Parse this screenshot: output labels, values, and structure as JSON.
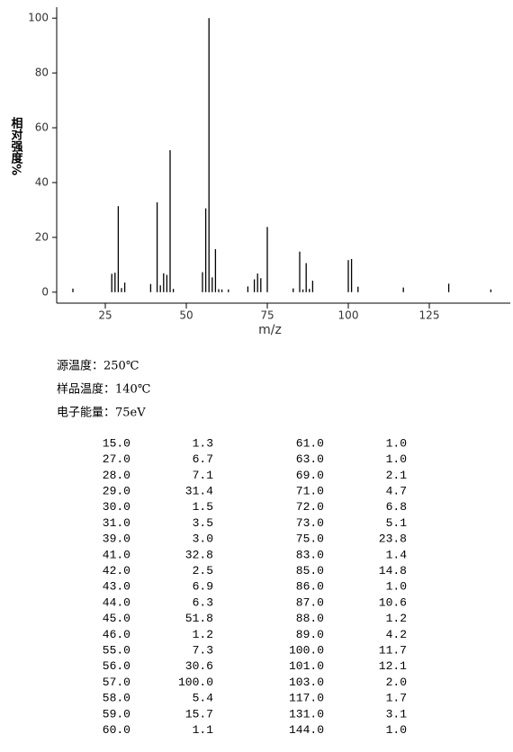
{
  "chart_data": {
    "type": "stem",
    "xlabel": "m/z",
    "ylabel": "相对强度%",
    "x": [
      15,
      27,
      28,
      29,
      30,
      31,
      39,
      41,
      42,
      43,
      44,
      45,
      46,
      55,
      56,
      57,
      58,
      59,
      60,
      61,
      63,
      69,
      71,
      72,
      73,
      75,
      83,
      85,
      86,
      87,
      88,
      89,
      100,
      101,
      103,
      117,
      131,
      144
    ],
    "x_labels": [
      "15.0",
      "27.0",
      "28.0",
      "29.0",
      "30.0",
      "31.0",
      "39.0",
      "41.0",
      "42.0",
      "43.0",
      "44.0",
      "45.0",
      "46.0",
      "55.0",
      "56.0",
      "57.0",
      "58.0",
      "59.0",
      "60.0",
      "61.0",
      "63.0",
      "69.0",
      "71.0",
      "72.0",
      "73.0",
      "75.0",
      "83.0",
      "85.0",
      "86.0",
      "87.0",
      "88.0",
      "89.0",
      "100.0",
      "101.0",
      "103.0",
      "117.0",
      "131.0",
      "144.0"
    ],
    "values": [
      1.3,
      6.7,
      7.1,
      31.4,
      1.5,
      3.5,
      3.0,
      32.8,
      2.5,
      6.9,
      6.3,
      51.8,
      1.2,
      7.3,
      30.6,
      100,
      5.4,
      15.7,
      1.1,
      1.0,
      1.0,
      2.1,
      4.7,
      6.8,
      5.1,
      23.8,
      1.4,
      14.8,
      1.0,
      10.6,
      1.2,
      4.2,
      11.7,
      12.1,
      2.0,
      1.7,
      3.1,
      1.0
    ],
    "value_labels": [
      "1.3",
      "6.7",
      "7.1",
      "31.4",
      "1.5",
      "3.5",
      "3.0",
      "32.8",
      "2.5",
      "6.9",
      "6.3",
      "51.8",
      "1.2",
      "7.3",
      "30.6",
      "100.0",
      "5.4",
      "15.7",
      "1.1",
      "1.0",
      "1.0",
      "2.1",
      "4.7",
      "6.8",
      "5.1",
      "23.8",
      "1.4",
      "14.8",
      "1.0",
      "10.6",
      "1.2",
      "4.2",
      "11.7",
      "12.1",
      "2.0",
      "1.7",
      "3.1",
      "1.0"
    ],
    "color": "#000000",
    "xlim": [
      10,
      150
    ],
    "xticks": [
      25,
      50,
      75,
      100,
      125
    ],
    "ylim": [
      -4,
      104
    ],
    "yticks": [
      0,
      20,
      40,
      60,
      80,
      100
    ]
  },
  "conditions": [
    "源温度：250℃",
    "样品温度：140℃",
    "电子能量：75eV"
  ]
}
